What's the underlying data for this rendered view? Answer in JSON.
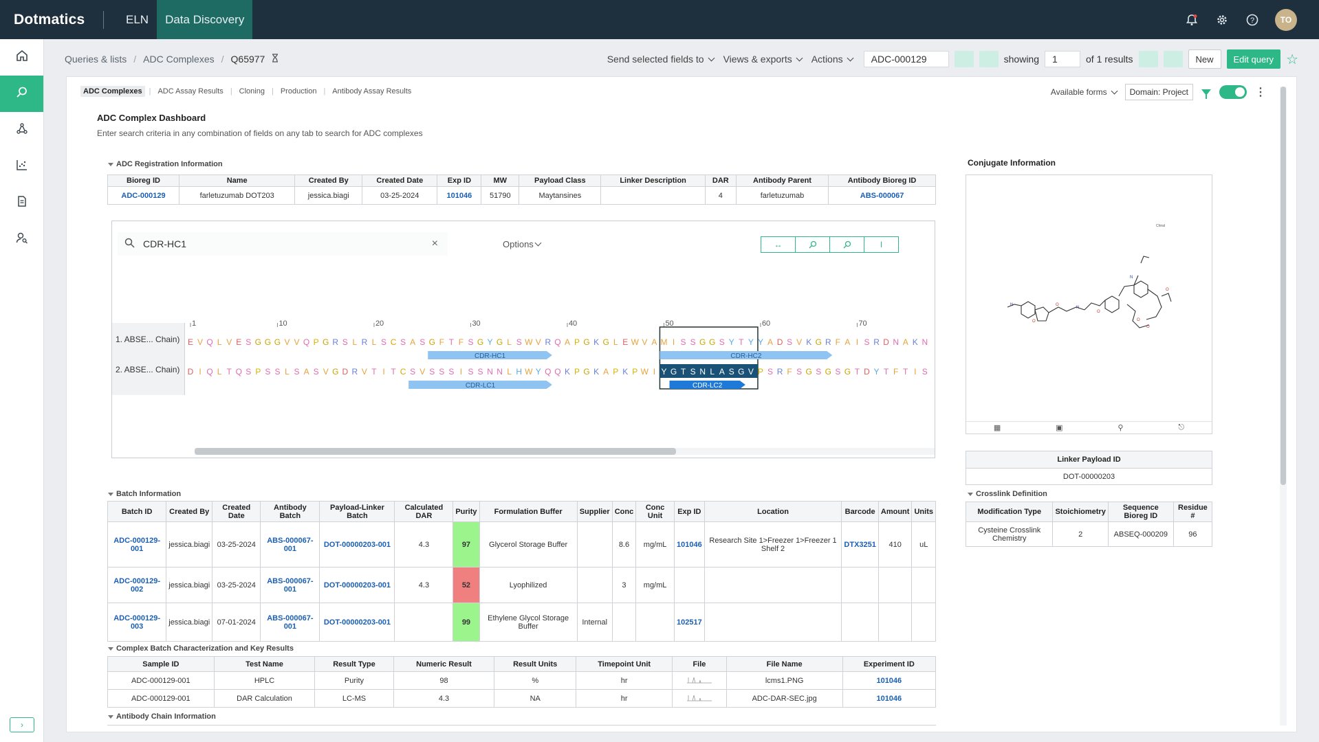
{
  "app": {
    "logo": "Dotmatics",
    "nav": [
      "ELN",
      "Data Discovery"
    ],
    "avatar": "TO"
  },
  "breadcrumb": [
    "Queries & lists",
    "ADC Complexes",
    "Q65977"
  ],
  "toolbar": {
    "send_fields": "Send selected fields to",
    "views_exports": "Views & exports",
    "actions": "Actions",
    "record_id": "ADC-000129",
    "showing": "showing",
    "page": "1",
    "of_results": "of 1 results",
    "new": "New",
    "edit_query": "Edit query"
  },
  "tabs": [
    "ADC Complexes",
    "ADC Assay Results",
    "Cloning",
    "Production",
    "Antibody Assay Results"
  ],
  "panel_right": {
    "available_forms": "Available forms",
    "domain": "Domain: Project"
  },
  "dashboard": {
    "title": "ADC Complex Dashboard",
    "subtitle": "Enter search criteria in any combination of fields on any tab to search for ADC complexes"
  },
  "registration": {
    "title": "ADC Registration Information",
    "headers": [
      "Bioreg ID",
      "Name",
      "Created By",
      "Created Date",
      "Exp ID",
      "MW",
      "Payload Class",
      "Linker Description",
      "DAR",
      "Antibody Parent",
      "Antibody Bioreg ID"
    ],
    "row": [
      "ADC-000129",
      "farletuzumab DOT203",
      "jessica.biagi",
      "03-25-2024",
      "101046",
      "51790",
      "Maytansines",
      "",
      "4",
      "farletuzumab",
      "ABS-000067"
    ]
  },
  "sequence": {
    "search_value": "CDR-HC1",
    "options": "Options",
    "ruler": [
      "1",
      "10",
      "20",
      "30",
      "40",
      "50",
      "60",
      "70"
    ],
    "chains": [
      {
        "label": "1. ABSE... Chain)",
        "seq": "EVQLVESGGGVVQPGRSLRLSCSASGFTFSGYGLSWVRQAPGKGLEWVAMISSGGSYTYYADSVKGRFAISRDNAKN"
      },
      {
        "label": "2. ABSE... Chain)",
        "seq": "DIQLTQSPSSLSASVGDRVTITCSVSSSISSNNLHWYQQKPGKAPKPWIYGTSNLASGVPSRFSGSGSGTDYTFTIS"
      }
    ],
    "features": [
      "CDR-HC1",
      "CDR-HC2",
      "CDR-LC1",
      "CDR-LC2"
    ]
  },
  "conjugate": {
    "title": "Conjugate Information",
    "linker_payload_header": "Linker Payload ID",
    "linker_payload_value": "DOT-00000203",
    "crosslink_title": "Crosslink Definition",
    "crosslink_headers": [
      "Modification Type",
      "Stoichiometry",
      "Sequence Bioreg ID",
      "Residue #"
    ],
    "crosslink_row": [
      "Cysteine Crosslink Chemistry",
      "2",
      "ABSEQ-000209",
      "96"
    ]
  },
  "batch": {
    "title": "Batch Information",
    "headers": [
      "Batch ID",
      "Created By",
      "Created Date",
      "Antibody Batch",
      "Payload-Linker Batch",
      "Calculated DAR",
      "Purity",
      "Formulation Buffer",
      "Supplier",
      "Conc",
      "Conc Unit",
      "Exp ID",
      "Location",
      "Barcode",
      "Amount",
      "Units"
    ],
    "rows": [
      [
        "ADC-000129-001",
        "jessica.biagi",
        "03-25-2024",
        "ABS-000067-001",
        "DOT-00000203-001",
        "4.3",
        "97",
        "Glycerol Storage Buffer",
        "",
        "8.6",
        "mg/mL",
        "101046",
        "Research Site 1>Freezer 1>Freezer 1 Shelf 2",
        "DTX3251",
        "410",
        "uL"
      ],
      [
        "ADC-000129-002",
        "jessica.biagi",
        "03-25-2024",
        "ABS-000067-001",
        "DOT-00000203-001",
        "4.3",
        "52",
        "Lyophilized",
        "",
        "3",
        "mg/mL",
        "",
        "",
        "",
        "",
        ""
      ],
      [
        "ADC-000129-003",
        "jessica.biagi",
        "07-01-2024",
        "ABS-000067-001",
        "DOT-00000203-001",
        "",
        "99",
        "Ethylene Glycol Storage Buffer",
        "Internal",
        "",
        "",
        "102517",
        "",
        "",
        "",
        ""
      ]
    ]
  },
  "characterization": {
    "title": "Complex Batch Characterization and Key Results",
    "headers": [
      "Sample ID",
      "Test Name",
      "Result Type",
      "Numeric Result",
      "Result Units",
      "Timepoint Unit",
      "File",
      "File Name",
      "Experiment ID"
    ],
    "rows": [
      [
        "ADC-000129-001",
        "HPLC",
        "Purity",
        "98",
        "%",
        "hr",
        "",
        "lcms1.PNG",
        "101046"
      ],
      [
        "ADC-000129-001",
        "DAR Calculation",
        "LC-MS",
        "4.3",
        "NA",
        "hr",
        "",
        "ADC-DAR-SEC.jpg",
        "101046"
      ]
    ]
  },
  "antibody_chain": {
    "title": "Antibody Chain Information"
  }
}
